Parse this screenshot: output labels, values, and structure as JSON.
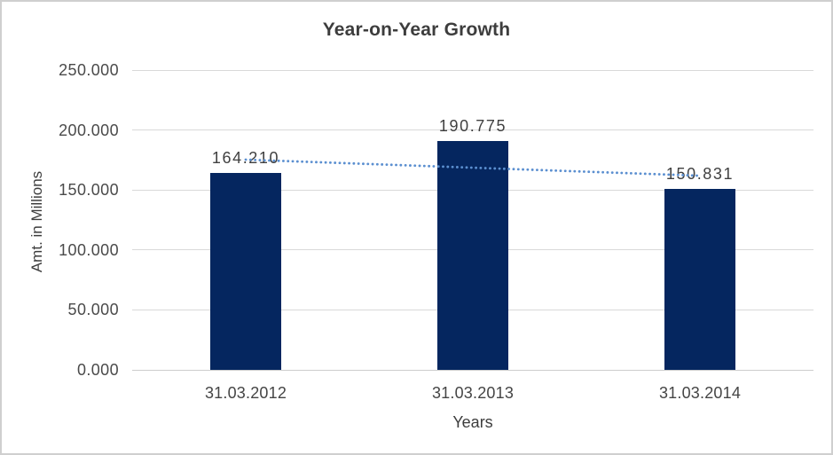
{
  "chart_data": {
    "type": "bar",
    "title": "Year-on-Year Growth",
    "xlabel": "Years",
    "ylabel": "Amt. in Millions",
    "categories": [
      "31.03.2012",
      "31.03.2013",
      "31.03.2014"
    ],
    "values": [
      164.21,
      190.775,
      150.831
    ],
    "data_labels": [
      "164.210",
      "190.775",
      "150.831"
    ],
    "y_tick_labels": [
      "0.000",
      "50.000",
      "100.000",
      "150.000",
      "200.000",
      "250.000"
    ],
    "ylim": [
      0,
      250
    ],
    "grid": true,
    "legend_position": "none",
    "trendline": {
      "type": "linear",
      "style": "dotted"
    },
    "colors": {
      "bar": "#05265f",
      "trendline": "#5b8fd0",
      "gridline": "#d9d9d9",
      "baseline": "#cdcdcd",
      "title_text": "#3d3d3d",
      "tick_text": "#4a4a4a"
    }
  }
}
